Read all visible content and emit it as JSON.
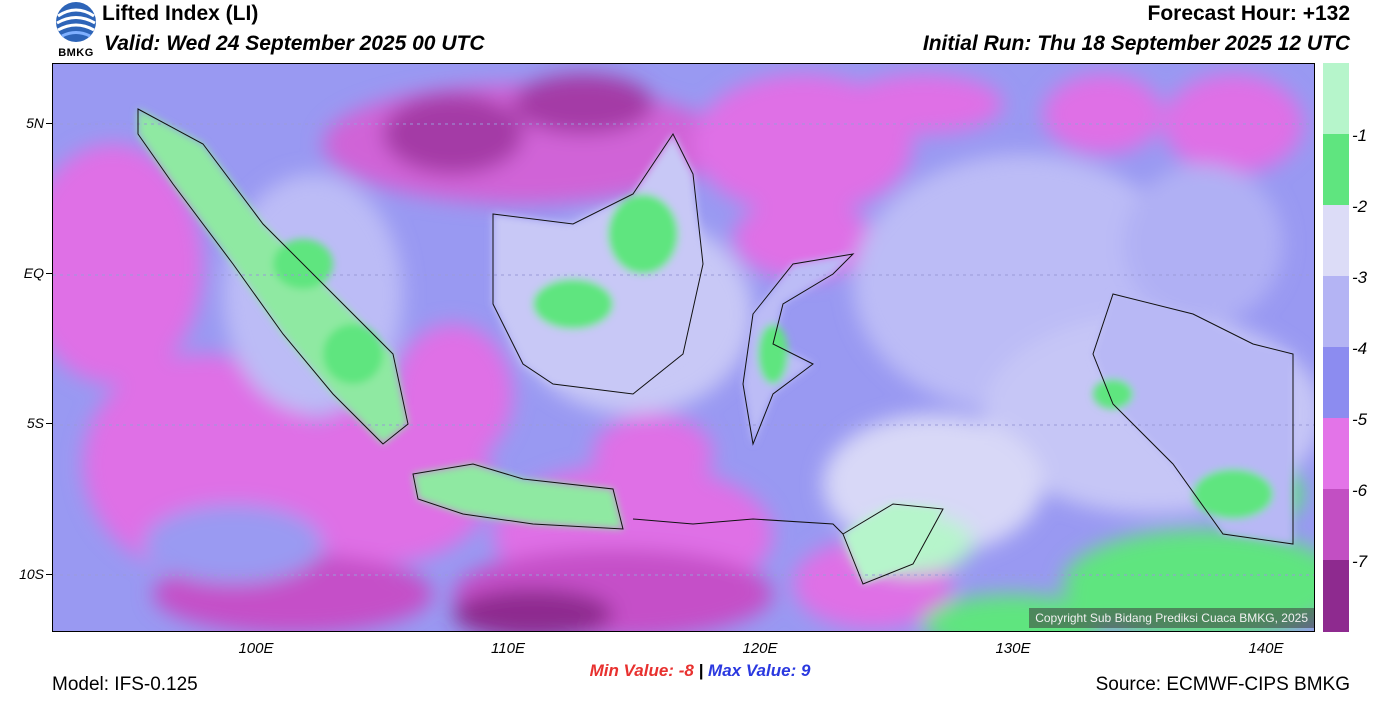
{
  "header": {
    "title": "Lifted Index (LI)",
    "valid": "Valid: Wed 24 September 2025 00 UTC",
    "forecast_hour": "Forecast Hour: +132",
    "initial_run": "Initial Run: Thu 18 September 2025 12 UTC"
  },
  "logo": {
    "text": "BMKG"
  },
  "map": {
    "lat_labels": [
      "5N",
      "EQ",
      "5S",
      "10S"
    ],
    "lon_labels": [
      "100E",
      "110E",
      "120E",
      "130E",
      "140E"
    ],
    "copyright": "Copyright Sub Bidang Prediksi Cuaca BMKG, 2025"
  },
  "legend": {
    "labels": [
      "-1",
      "-2",
      "-3",
      "-4",
      "-5",
      "-6",
      "-7"
    ],
    "colors": [
      "#b6f5cb",
      "#5fe57f",
      "#dcdcf7",
      "#b4b4f4",
      "#8c8cf0",
      "#e374e8",
      "#c24fc3",
      "#8e2a8f"
    ]
  },
  "stats": {
    "min_label": "Min Value:",
    "min_value": "-8",
    "separator": "|",
    "max_label": "Max Value:",
    "max_value": "9"
  },
  "footer": {
    "model": "Model: IFS-0.125",
    "source": "Source: ECMWF-CIPS BMKG"
  }
}
